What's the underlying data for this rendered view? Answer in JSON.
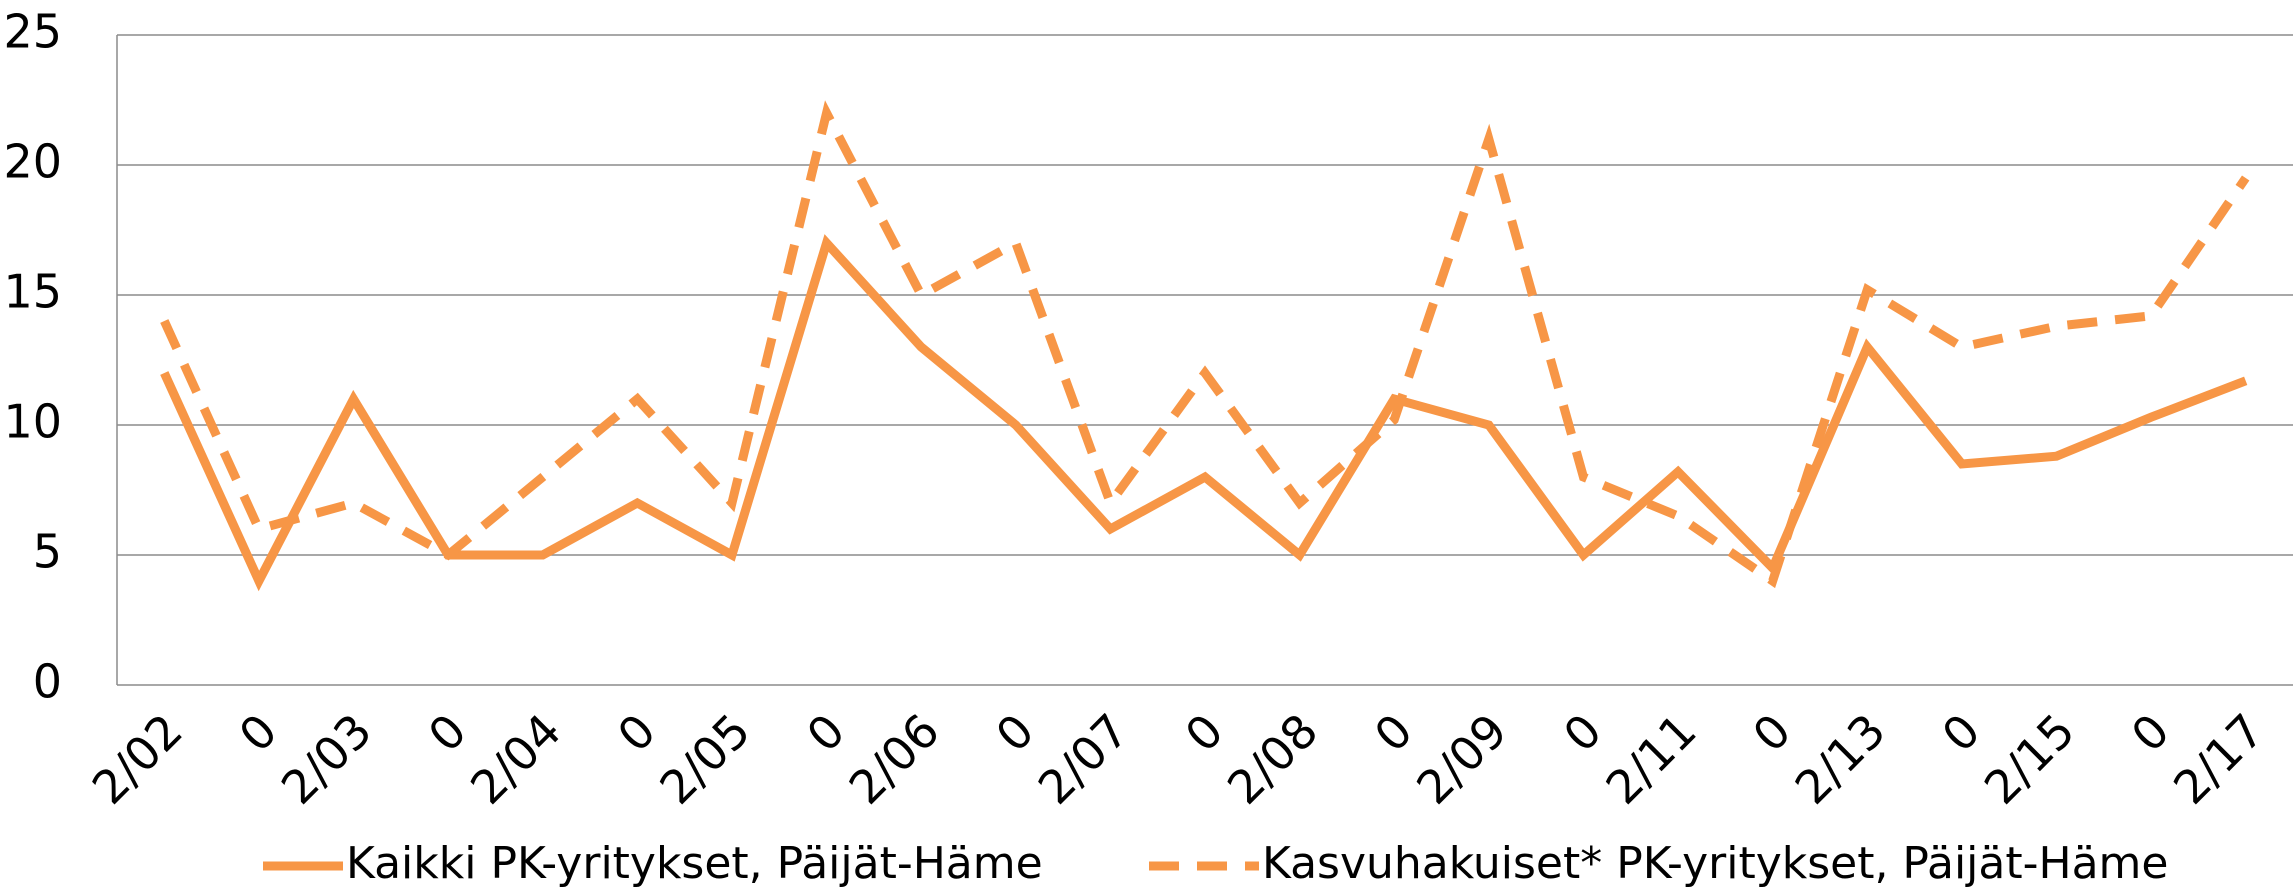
{
  "chart_data": {
    "type": "line",
    "categories": [
      "2/02",
      "0",
      "2/03",
      "0",
      "2/04",
      "0",
      "2/05",
      "0",
      "2/06",
      "0",
      "2/07",
      "0",
      "2/08",
      "0",
      "2/09",
      "0",
      "2/11",
      "0",
      "2/13",
      "0",
      "2/15",
      "0",
      "2/17"
    ],
    "series": [
      {
        "name": "Kaikki PK-yritykset, Päijät-Häme",
        "color": "#f79646",
        "dash": false,
        "values": [
          12,
          4,
          11,
          5,
          5,
          7,
          5,
          17,
          13,
          10,
          6,
          8,
          5,
          11,
          10,
          5,
          8.2,
          4.5,
          13,
          8.5,
          8.8,
          10.3,
          11.7
        ]
      },
      {
        "name": "Kasvuhakuiset* PK-yritykset, Päijät-Häme",
        "color": "#f79646",
        "dash": true,
        "values": [
          14,
          6,
          7,
          5,
          8,
          11,
          7,
          22,
          15,
          17,
          7,
          12,
          7,
          10.2,
          21,
          8,
          6.5,
          4,
          15.2,
          13,
          13.8,
          14.2,
          19.5
        ]
      }
    ],
    "ylim": [
      0,
      25
    ],
    "yticks": [
      0,
      5,
      10,
      15,
      20,
      25
    ],
    "grid": true,
    "legend": "bottom"
  }
}
